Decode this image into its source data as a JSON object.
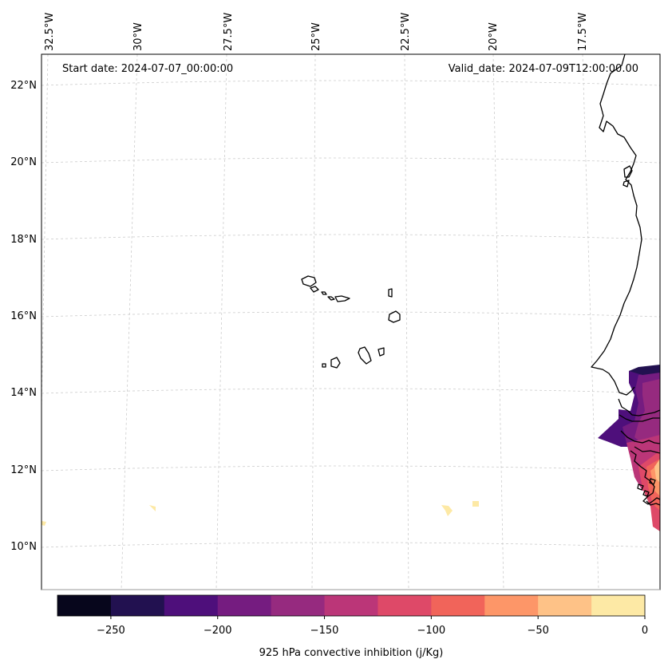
{
  "map": {
    "start_date": "Start date: 2024-07-07_00:00:00",
    "valid_date": "Valid_date: 2024-07-09T12:00:00.00",
    "top_longitude_labels": [
      "32.5°W",
      "30°W",
      "27.5°W",
      "25°W",
      "22.5°W",
      "20°W",
      "17.5°W"
    ],
    "left_latitude_labels": [
      "22°N",
      "20°N",
      "18°N",
      "16°N",
      "14°N",
      "12°N",
      "10°N"
    ],
    "coastline_color": "#000000",
    "gridline_color": "#cccccc"
  },
  "colorbar": {
    "label": "925 hPa convective inhibition (j/Kg)",
    "tick_labels": [
      "−250",
      "−200",
      "−150",
      "−100",
      "−50",
      "0"
    ],
    "tick_values": [
      -250,
      -200,
      -150,
      -100,
      -50,
      0
    ],
    "range": [
      -275,
      0
    ],
    "bins": [
      {
        "from": -275,
        "to": -250,
        "color": "#07061c"
      },
      {
        "from": -250,
        "to": -225,
        "color": "#221150"
      },
      {
        "from": -225,
        "to": -200,
        "color": "#4e0f7b"
      },
      {
        "from": -200,
        "to": -175,
        "color": "#751c80"
      },
      {
        "from": -175,
        "to": -150,
        "color": "#962a7f"
      },
      {
        "from": -150,
        "to": -125,
        "color": "#bb3678"
      },
      {
        "from": -125,
        "to": -100,
        "color": "#de4968"
      },
      {
        "from": -100,
        "to": -75,
        "color": "#f1645a"
      },
      {
        "from": -75,
        "to": -50,
        "color": "#fd9668"
      },
      {
        "from": -50,
        "to": -25,
        "color": "#fec287"
      },
      {
        "from": -25,
        "to": 0,
        "color": "#fde9a5"
      }
    ]
  }
}
